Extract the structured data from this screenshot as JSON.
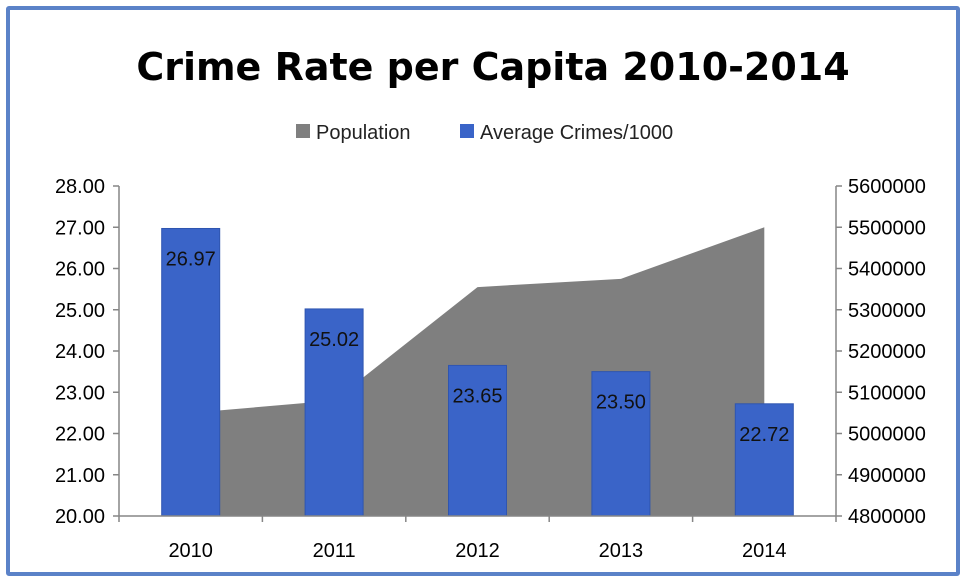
{
  "chart_data": {
    "type": "bar",
    "title": "Crime Rate per Capita 2010-2014",
    "categories": [
      "2010",
      "2011",
      "2012",
      "2013",
      "2014"
    ],
    "series": [
      {
        "name": "Population",
        "type": "area",
        "axis": "right",
        "color": "#7f7f7f",
        "values": [
          5050000,
          5080000,
          5355000,
          5375000,
          5500000
        ]
      },
      {
        "name": "Average Crimes/1000",
        "type": "bar",
        "axis": "left",
        "color": "#3a64c8",
        "values": [
          26.97,
          25.02,
          23.65,
          23.5,
          22.72
        ],
        "labels": [
          "26.97",
          "25.02",
          "23.65",
          "23.50",
          "22.72"
        ]
      }
    ],
    "y_left": {
      "min": 20,
      "max": 28,
      "step": 1,
      "ticks": [
        "20.00",
        "21.00",
        "22.00",
        "23.00",
        "24.00",
        "25.00",
        "26.00",
        "27.00",
        "28.00"
      ]
    },
    "y_right": {
      "min": 4800000,
      "max": 5600000,
      "step": 100000,
      "ticks": [
        "4800000",
        "4900000",
        "5000000",
        "5100000",
        "5200000",
        "5300000",
        "5400000",
        "5500000",
        "5600000"
      ]
    },
    "legend_position": "top",
    "grid": false
  }
}
